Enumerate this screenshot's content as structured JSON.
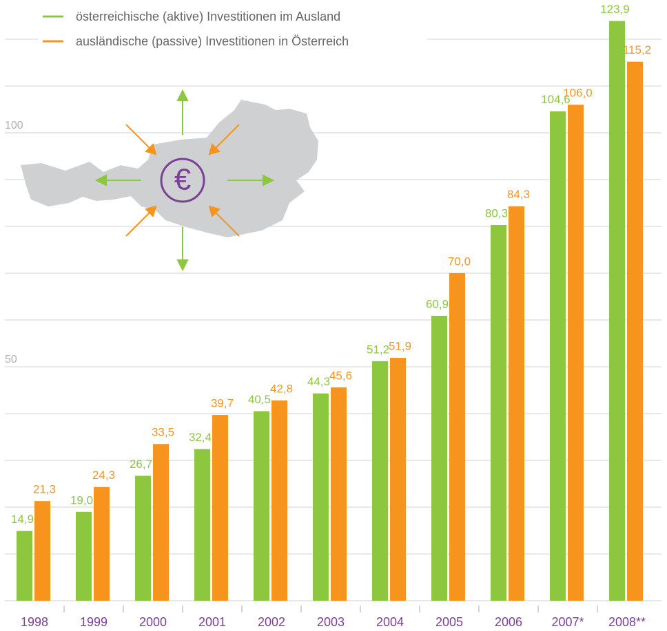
{
  "chart_data": {
    "type": "bar",
    "categories": [
      "1998",
      "1999",
      "2000",
      "2001",
      "2002",
      "2003",
      "2004",
      "2005",
      "2006",
      "2007*",
      "2008**"
    ],
    "series": [
      {
        "name": "österreichische (aktive) Investitionen im Ausland",
        "color": "#8dc63f",
        "values": [
          14.9,
          19.0,
          26.7,
          32.4,
          40.5,
          44.3,
          51.2,
          60.9,
          80.3,
          104.6,
          123.9
        ],
        "value_labels": [
          "14,9",
          "19,0",
          "26,7",
          "32,4",
          "40,5",
          "44,3",
          "51,2",
          "60,9",
          "80,3",
          "104,6",
          "123,9"
        ]
      },
      {
        "name": "ausländische (passive) Investitionen in Österreich",
        "color": "#f7941d",
        "values": [
          21.3,
          24.3,
          33.5,
          39.7,
          42.8,
          45.6,
          51.9,
          70.0,
          84.3,
          106.0,
          115.2
        ],
        "value_labels": [
          "21,3",
          "24,3",
          "33,5",
          "39,7",
          "42,8",
          "45,6",
          "51,9",
          "70,0",
          "84,3",
          "106,0",
          "115,2"
        ]
      }
    ],
    "ylim": [
      0,
      128
    ],
    "yticks": [
      50,
      100
    ],
    "minor_grid": [
      0,
      10,
      20,
      30,
      40,
      60,
      70,
      80,
      90,
      110,
      120
    ],
    "grid": true,
    "legend": "top-left",
    "category_color": "#7b3f98",
    "map_symbol": "€"
  }
}
